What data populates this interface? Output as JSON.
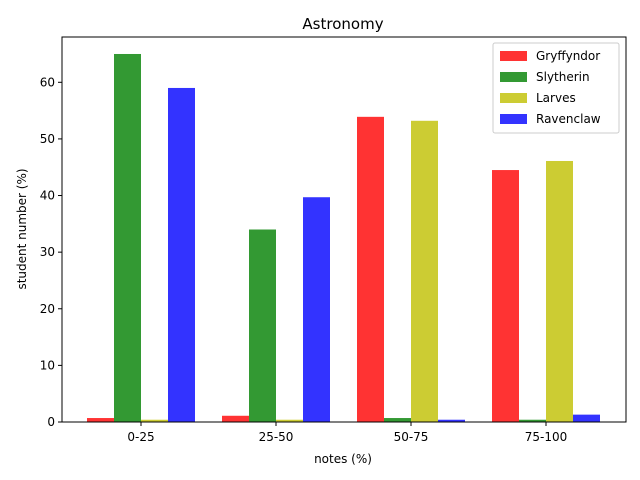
{
  "chart_data": {
    "type": "bar",
    "title": "Astronomy",
    "xlabel": "notes (%)",
    "ylabel": "student number (%)",
    "categories": [
      "0-25",
      "25-50",
      "50-75",
      "75-100"
    ],
    "ylim": [
      0,
      68
    ],
    "yticks": [
      0,
      10,
      20,
      30,
      40,
      50,
      60
    ],
    "grid": false,
    "legend_position": "top-right",
    "series": [
      {
        "name": "Gryffyndor",
        "color": "#ff3333",
        "values": [
          0.7,
          1.1,
          53.9,
          44.5
        ]
      },
      {
        "name": "Slytherin",
        "color": "#339933",
        "values": [
          65.0,
          34.0,
          0.7,
          0.4
        ]
      },
      {
        "name": "Larves",
        "color": "#cccc33",
        "values": [
          0.4,
          0.4,
          53.2,
          46.1
        ]
      },
      {
        "name": "Ravenclaw",
        "color": "#3333ff",
        "values": [
          59.0,
          39.7,
          0.4,
          1.3
        ]
      }
    ]
  }
}
